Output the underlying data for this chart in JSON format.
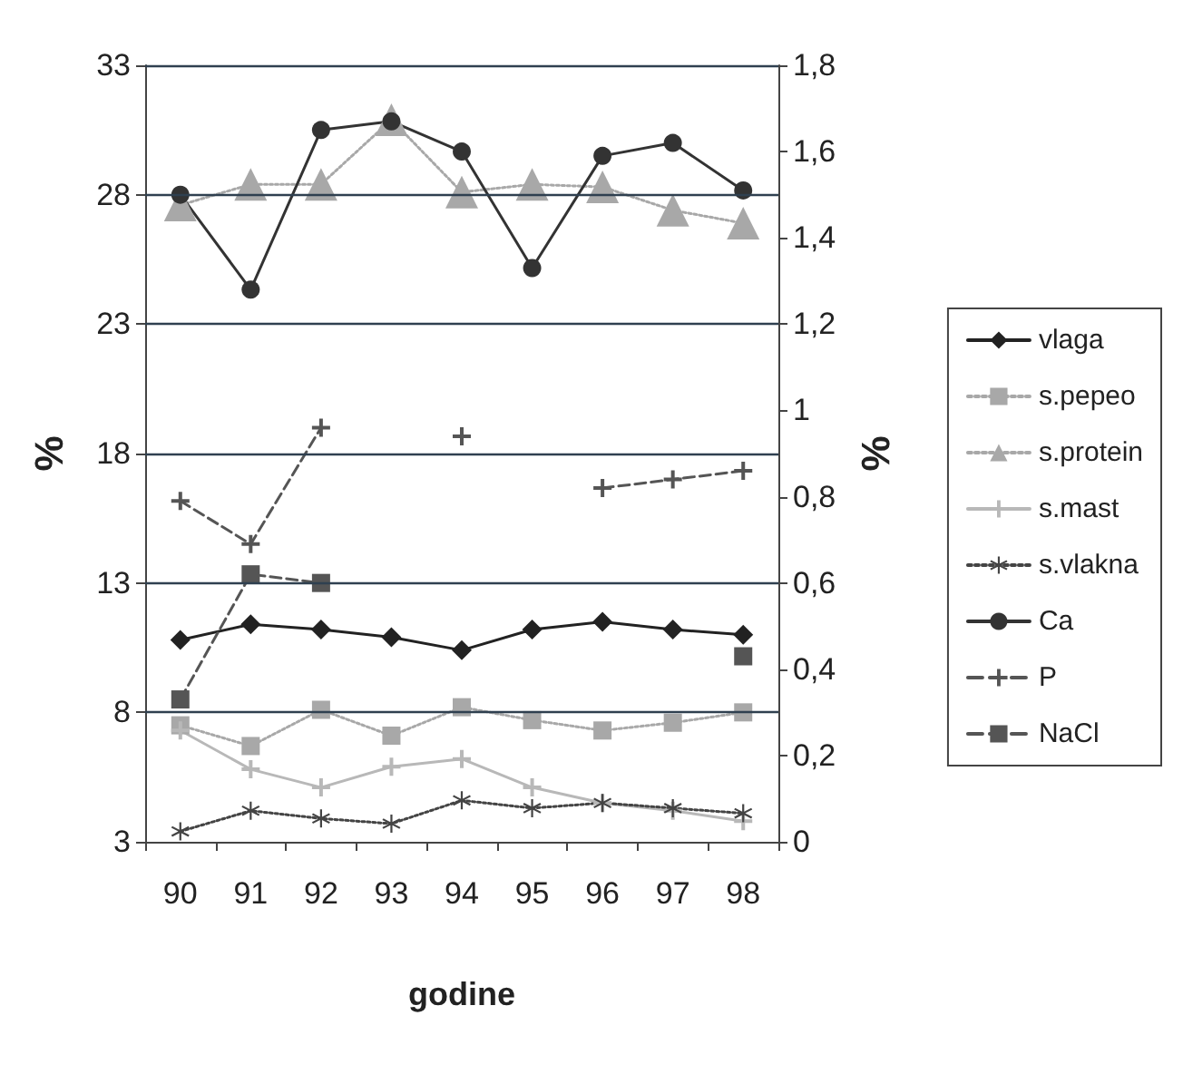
{
  "chart_data": {
    "type": "line",
    "xlabel": "godine",
    "ylabel": "%",
    "y2label": "%",
    "categories": [
      "90",
      "91",
      "92",
      "93",
      "94",
      "95",
      "96",
      "97",
      "98"
    ],
    "ylim": [
      3,
      33
    ],
    "yticks": [
      3,
      8,
      13,
      18,
      23,
      28,
      33
    ],
    "y2lim": [
      0,
      1.8
    ],
    "y2ticks": [
      0,
      {
        "value": 0.2,
        "label": "0,2"
      },
      {
        "value": 0.4,
        "label": "0,4"
      },
      {
        "value": 0.6,
        "label": "0,6"
      },
      {
        "value": 0.8,
        "label": "0,8"
      },
      1,
      {
        "value": 1.2,
        "label": "1,2"
      },
      {
        "value": 1.4,
        "label": "1,4"
      },
      {
        "value": 1.6,
        "label": "1,6"
      },
      {
        "value": 1.8,
        "label": "1,8"
      }
    ],
    "grid": "y",
    "legend": "right",
    "series": [
      {
        "name": "vlaga",
        "color": "#222222",
        "marker": "diamond",
        "line_style": "solid",
        "values": [
          10.8,
          11.4,
          11.2,
          10.9,
          10.4,
          11.2,
          11.5,
          11.2,
          11.0
        ]
      },
      {
        "name": "s.pepeo",
        "color": "#a8a8a8",
        "marker": "square",
        "line_style": "dotted",
        "values": [
          7.5,
          6.7,
          8.1,
          7.1,
          8.2,
          7.7,
          7.3,
          7.6,
          8.0
        ]
      },
      {
        "name": "s.protein",
        "color": "#a8a8a8",
        "marker": "triangle",
        "line_style": "dotted",
        "values": [
          27.6,
          28.4,
          28.4,
          30.9,
          28.1,
          28.4,
          28.3,
          27.4,
          26.9
        ]
      },
      {
        "name": "s.mast",
        "color": "#b8b8b8",
        "marker": "cross",
        "line_style": "solid",
        "values": [
          7.3,
          5.8,
          5.1,
          5.9,
          6.2,
          5.1,
          4.5,
          4.2,
          3.8
        ]
      },
      {
        "name": "s.vlakna",
        "color": "#444444",
        "marker": "star",
        "line_style": "dotted",
        "values": [
          3.4,
          4.2,
          3.9,
          3.7,
          4.6,
          4.3,
          4.5,
          4.3,
          4.1
        ]
      },
      {
        "name": "Ca",
        "color": "#333333",
        "marker": "circle",
        "line_style": "solid",
        "axis": "y2",
        "values": [
          1.5,
          1.28,
          1.65,
          1.67,
          1.6,
          1.33,
          1.59,
          1.62,
          1.51
        ]
      },
      {
        "name": "P",
        "color": "#555555",
        "marker": "cross",
        "line_style": "dashed",
        "axis": "y2",
        "values": [
          0.79,
          0.69,
          0.96,
          null,
          0.94,
          null,
          0.82,
          0.84,
          0.86
        ]
      },
      {
        "name": "NaCl",
        "color": "#555555",
        "marker": "square",
        "line_style": "dashed",
        "axis": "y2",
        "values": [
          0.33,
          0.62,
          0.6,
          null,
          null,
          null,
          null,
          null,
          0.43
        ]
      }
    ]
  }
}
